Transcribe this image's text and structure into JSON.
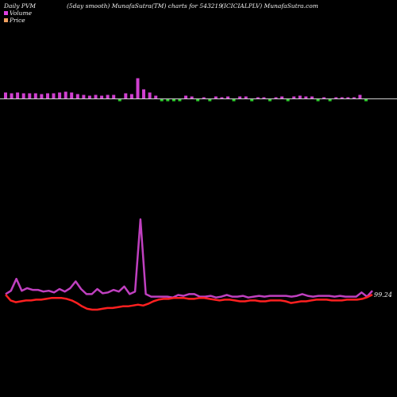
{
  "header": {
    "left": "Daily PVM",
    "middle": "(5day smooth) MunafaSutra(TM) charts for 543219",
    "right": "(ICICIALPLV) MunafaSutra.com"
  },
  "legend": [
    {
      "label": "Volume",
      "color": "#e040e0"
    },
    {
      "label": "Price",
      "color": "#f0a060"
    }
  ],
  "colors": {
    "volume_up": "#d040d0",
    "volume_down": "#30d030",
    "volume_line": "#c040c0",
    "price_line": "#ff2020",
    "baseline": "#d0d0d0"
  },
  "chart_data": {
    "type": "line",
    "last_price_label": "99.24",
    "volume_bars": [
      {
        "value": 8,
        "dir": "up"
      },
      {
        "value": 7,
        "dir": "up"
      },
      {
        "value": 8,
        "dir": "up"
      },
      {
        "value": 7,
        "dir": "up"
      },
      {
        "value": 7,
        "dir": "up"
      },
      {
        "value": 7,
        "dir": "up"
      },
      {
        "value": 6,
        "dir": "up"
      },
      {
        "value": 7,
        "dir": "up"
      },
      {
        "value": 7,
        "dir": "up"
      },
      {
        "value": 8,
        "dir": "up"
      },
      {
        "value": 9,
        "dir": "up"
      },
      {
        "value": 8,
        "dir": "up"
      },
      {
        "value": 6,
        "dir": "up"
      },
      {
        "value": 5,
        "dir": "up"
      },
      {
        "value": 4,
        "dir": "up"
      },
      {
        "value": 5,
        "dir": "up"
      },
      {
        "value": 4,
        "dir": "up"
      },
      {
        "value": 5,
        "dir": "up"
      },
      {
        "value": 5,
        "dir": "up"
      },
      {
        "value": 6,
        "dir": "down"
      },
      {
        "value": 7,
        "dir": "up"
      },
      {
        "value": 6,
        "dir": "up"
      },
      {
        "value": 26,
        "dir": "up"
      },
      {
        "value": 12,
        "dir": "up"
      },
      {
        "value": 8,
        "dir": "up"
      },
      {
        "value": 4,
        "dir": "up"
      },
      {
        "value": 3,
        "dir": "down"
      },
      {
        "value": 4,
        "dir": "down"
      },
      {
        "value": 3,
        "dir": "down"
      },
      {
        "value": 3,
        "dir": "down"
      },
      {
        "value": 4,
        "dir": "up"
      },
      {
        "value": 3,
        "dir": "up"
      },
      {
        "value": 3,
        "dir": "down"
      },
      {
        "value": 2,
        "dir": "up"
      },
      {
        "value": 2,
        "dir": "down"
      },
      {
        "value": 3,
        "dir": "up"
      },
      {
        "value": 2,
        "dir": "up"
      },
      {
        "value": 3,
        "dir": "up"
      },
      {
        "value": 2,
        "dir": "down"
      },
      {
        "value": 3,
        "dir": "up"
      },
      {
        "value": 3,
        "dir": "up"
      },
      {
        "value": 3,
        "dir": "down"
      },
      {
        "value": 2,
        "dir": "up"
      },
      {
        "value": 2,
        "dir": "up"
      },
      {
        "value": 3,
        "dir": "down"
      },
      {
        "value": 2,
        "dir": "up"
      },
      {
        "value": 3,
        "dir": "up"
      },
      {
        "value": 3,
        "dir": "down"
      },
      {
        "value": 3,
        "dir": "up"
      },
      {
        "value": 4,
        "dir": "up"
      },
      {
        "value": 3,
        "dir": "up"
      },
      {
        "value": 3,
        "dir": "up"
      },
      {
        "value": 3,
        "dir": "down"
      },
      {
        "value": 2,
        "dir": "up"
      },
      {
        "value": 3,
        "dir": "down"
      },
      {
        "value": 2,
        "dir": "up"
      },
      {
        "value": 2,
        "dir": "up"
      },
      {
        "value": 2,
        "dir": "up"
      },
      {
        "value": 2,
        "dir": "up"
      },
      {
        "value": 5,
        "dir": "up"
      },
      {
        "value": 4,
        "dir": "down"
      }
    ],
    "volume_line": [
      8,
      12,
      26,
      12,
      15,
      13,
      13,
      11,
      12,
      10,
      14,
      11,
      15,
      23,
      14,
      8,
      8,
      14,
      9,
      10,
      13,
      11,
      17,
      8,
      11,
      96,
      8,
      5,
      5,
      5,
      5,
      4,
      7,
      6,
      8,
      8,
      5,
      5,
      6,
      4,
      5,
      7,
      5,
      5,
      6,
      4,
      5,
      6,
      5,
      6,
      6,
      6,
      6,
      5,
      6,
      8,
      6,
      5,
      6,
      6,
      6,
      5,
      6,
      5,
      5,
      5,
      10,
      5,
      12
    ],
    "price_line": [
      90,
      83,
      81,
      82,
      83,
      83,
      84,
      84,
      85,
      86,
      86,
      86,
      85,
      83,
      80,
      76,
      73,
      72,
      72,
      73,
      74,
      74,
      75,
      76,
      76,
      77,
      78,
      77,
      79,
      82,
      84,
      85,
      85,
      86,
      86,
      86,
      85,
      85,
      86,
      86,
      85,
      84,
      83,
      84,
      84,
      83,
      82,
      82,
      83,
      83,
      82,
      82,
      83,
      83,
      83,
      82,
      80,
      81,
      82,
      82,
      83,
      84,
      84,
      84,
      83,
      83,
      83,
      84,
      84,
      84,
      85,
      87,
      90
    ]
  }
}
